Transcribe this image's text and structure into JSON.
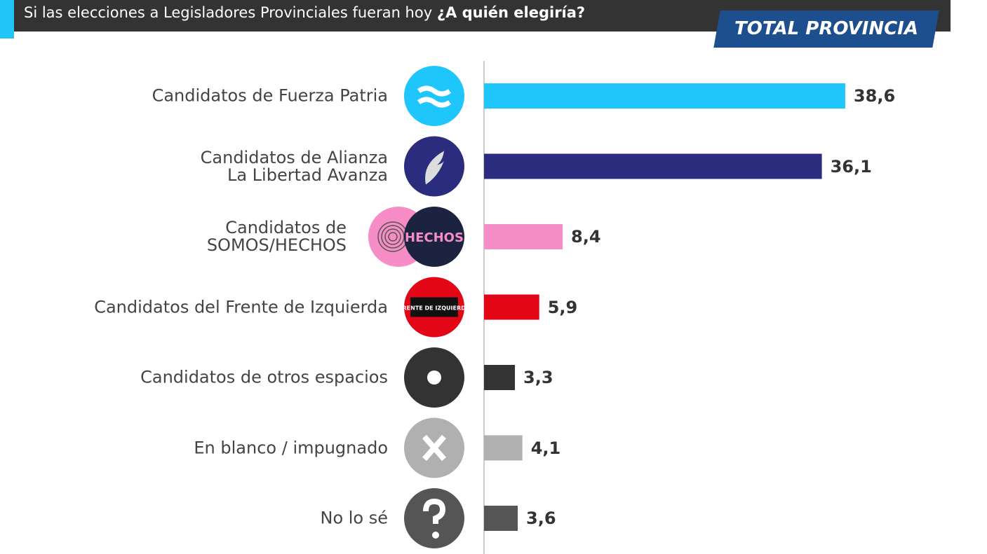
{
  "chart_data": {
    "type": "bar",
    "title": "Si las elecciones a Legisladores Provinciales fueran hoy",
    "title_emphasis": "¿A quién elegiría?",
    "badge": "TOTAL PROVINCIA",
    "categories": [
      "Candidatos de Fuerza Patria",
      "Candidatos de Alianza\nLa Libertad Avanza",
      "Candidatos de\nSOMOS/HECHOS",
      "Candidatos del Frente de Izquierda",
      "Candidatos de otros espacios",
      "En blanco / impugnado",
      "No lo sé"
    ],
    "values": [
      38.6,
      36.1,
      8.4,
      5.9,
      3.3,
      4.1,
      3.6
    ],
    "value_labels": [
      "38,6",
      "36,1",
      "8,4",
      "5,9",
      "3,3",
      "4,1",
      "3,6"
    ],
    "colors": [
      "#1fc6fb",
      "#2b2c7e",
      "#f78dc6",
      "#e30617",
      "#333333",
      "#b0b0b0",
      "#555555"
    ],
    "logos": {
      "hechos": "HECHOS",
      "frente": "FRENTE DE IZQUIERDA"
    }
  }
}
